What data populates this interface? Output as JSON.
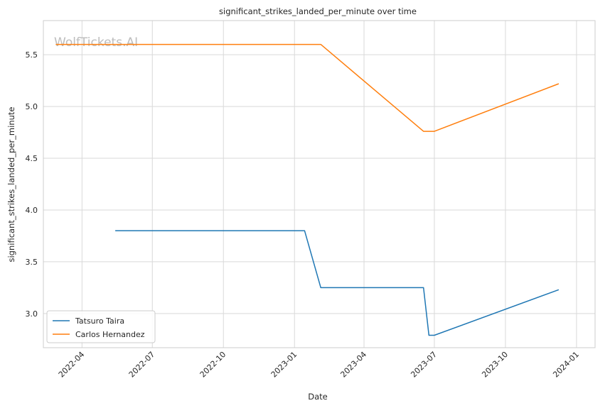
{
  "watermark": "WolfTickets.AI",
  "chart_data": {
    "type": "line",
    "title": "significant_strikes_landed_per_minute over time",
    "xlabel": "Date",
    "ylabel": "significant_strikes_landed_per_minute",
    "x_type": "date",
    "xlim": [
      "2022-02-10",
      "2024-01-25"
    ],
    "ylim": [
      2.67,
      5.83
    ],
    "x_ticks": [
      "2022-04-01",
      "2022-07-01",
      "2022-10-01",
      "2023-01-01",
      "2023-04-01",
      "2023-07-01",
      "2023-10-01",
      "2024-01-01"
    ],
    "x_tick_labels": [
      "2022-04",
      "2022-07",
      "2022-10",
      "2023-01",
      "2023-04",
      "2023-07",
      "2023-10",
      "2024-01"
    ],
    "y_ticks": [
      3.0,
      3.5,
      4.0,
      4.5,
      5.0,
      5.5
    ],
    "y_tick_labels": [
      "3.0",
      "3.5",
      "4.0",
      "4.5",
      "5.0",
      "5.5"
    ],
    "grid": true,
    "legend_position": "lower-left",
    "series": [
      {
        "name": "Tatsuro Taira",
        "color": "#1f77b4",
        "x": [
          "2022-05-14",
          "2023-01-14",
          "2023-02-04",
          "2023-06-17",
          "2023-06-24",
          "2023-07-01",
          "2023-12-09"
        ],
        "y": [
          3.8,
          3.8,
          3.25,
          3.25,
          2.79,
          2.79,
          3.23
        ]
      },
      {
        "name": "Carlos Hernandez",
        "color": "#ff7f0e",
        "x": [
          "2022-02-26",
          "2023-02-04",
          "2023-06-17",
          "2023-07-01",
          "2023-12-09"
        ],
        "y": [
          5.6,
          5.6,
          4.76,
          4.76,
          5.22
        ]
      }
    ]
  }
}
